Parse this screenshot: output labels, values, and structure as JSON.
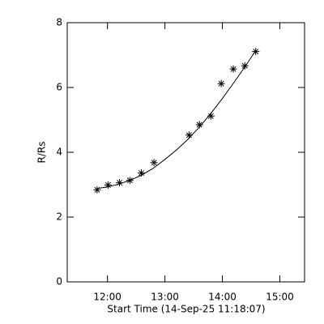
{
  "chart_data": {
    "type": "scatter",
    "xlabel": "Start Time (14-Sep-25 11:18:07)",
    "ylabel": "R/Rs",
    "xlim": [
      11.3,
      15.43
    ],
    "ylim": [
      0,
      8
    ],
    "xticks": [
      {
        "value": 12,
        "label": "12:00"
      },
      {
        "value": 13,
        "label": "13:00"
      },
      {
        "value": 14,
        "label": "14:00"
      },
      {
        "value": 15,
        "label": "15:00"
      }
    ],
    "yticks": [
      0,
      2,
      4,
      6,
      8
    ],
    "color": "#000000",
    "series": [
      {
        "style": "markers",
        "marker": "asterisk",
        "color": "#000000",
        "x": [
          11.82,
          12.01,
          12.21,
          12.39,
          12.59,
          12.81,
          13.42,
          13.6,
          13.8,
          13.98,
          14.19,
          14.39,
          14.58
        ],
        "values": [
          2.84,
          2.99,
          3.06,
          3.13,
          3.36,
          3.68,
          4.53,
          4.85,
          5.12,
          6.12,
          6.57,
          6.67,
          7.11
        ]
      },
      {
        "style": "line",
        "color": "#000000",
        "x": [
          11.82,
          12.0,
          12.2,
          12.4,
          12.6,
          12.8,
          13.0,
          13.2,
          13.4,
          13.6,
          13.8,
          14.0,
          14.2,
          14.4,
          14.58
        ],
        "values": [
          2.88,
          2.93,
          3.02,
          3.14,
          3.3,
          3.51,
          3.78,
          4.07,
          4.4,
          4.78,
          5.2,
          5.66,
          6.15,
          6.66,
          7.14
        ]
      }
    ]
  }
}
